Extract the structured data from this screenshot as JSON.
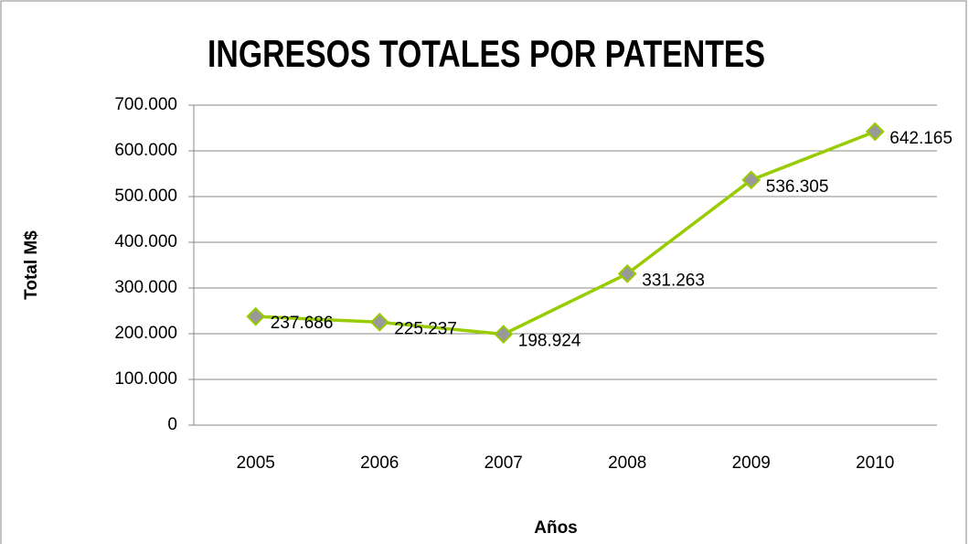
{
  "chart_data": {
    "type": "line",
    "title": "INGRESOS TOTALES POR PATENTES",
    "x_label": "Años",
    "y_label": "Total M$",
    "categories": [
      "2005",
      "2006",
      "2007",
      "2008",
      "2009",
      "2010"
    ],
    "series": [
      {
        "name": "Total M$",
        "color": "#99cc00",
        "values": [
          237686,
          225237,
          198924,
          331263,
          536305,
          642165
        ],
        "value_labels": [
          "237.686",
          "225.237",
          "198.924",
          "331.263",
          "536.305",
          "642.165"
        ]
      }
    ],
    "ylim": [
      0,
      700000
    ],
    "yticks": [
      0,
      {
        "value": 100000,
        "label": "100.000"
      },
      {
        "value": 200000,
        "label": "200.000"
      },
      {
        "value": 300000,
        "label": "300.000"
      },
      {
        "value": 400000,
        "label": "400.000"
      },
      {
        "value": 500000,
        "label": "500.000"
      },
      {
        "value": 600000,
        "label": "600.000"
      },
      {
        "value": 700000,
        "label": "700.000"
      }
    ],
    "grid": true
  }
}
